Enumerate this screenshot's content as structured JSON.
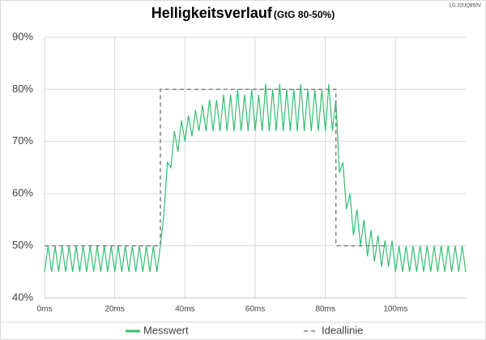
{
  "chart_data": {
    "type": "line",
    "title": "Helligkeitsverlauf",
    "subtitle": "(GtG 80-50%)",
    "annotation": "LG 32UQ850V",
    "xlim": [
      0,
      120
    ],
    "xticks": [
      {
        "value": 0,
        "label": "0ms"
      },
      {
        "value": 20,
        "label": "20ms"
      },
      {
        "value": 40,
        "label": "40ms"
      },
      {
        "value": 60,
        "label": "60ms"
      },
      {
        "value": 80,
        "label": "80ms"
      },
      {
        "value": 100,
        "label": "100ms"
      }
    ],
    "ylim": [
      40,
      90
    ],
    "yticks": [
      {
        "value": 40,
        "label": "40%"
      },
      {
        "value": 50,
        "label": "50%"
      },
      {
        "value": 60,
        "label": "60%"
      },
      {
        "value": 70,
        "label": "70%"
      },
      {
        "value": 80,
        "label": "80%"
      },
      {
        "value": 90,
        "label": "90%"
      }
    ],
    "grid": true,
    "legend": "bottom",
    "series": [
      {
        "name": "Messwert",
        "color": "#33bf72",
        "dash": false,
        "x": [
          0,
          1,
          2,
          3,
          4,
          5,
          6,
          7,
          8,
          9,
          10,
          11,
          12,
          13,
          14,
          15,
          16,
          17,
          18,
          19,
          20,
          21,
          22,
          23,
          24,
          25,
          26,
          27,
          28,
          29,
          30,
          31,
          32,
          33,
          34,
          35,
          36,
          37,
          38,
          39,
          40,
          41,
          42,
          43,
          44,
          45,
          46,
          47,
          48,
          49,
          50,
          51,
          52,
          53,
          54,
          55,
          56,
          57,
          58,
          59,
          60,
          61,
          62,
          63,
          64,
          65,
          66,
          67,
          68,
          69,
          70,
          71,
          72,
          73,
          74,
          75,
          76,
          77,
          78,
          79,
          80,
          81,
          82,
          83,
          84,
          85,
          86,
          87,
          88,
          89,
          90,
          91,
          92,
          93,
          94,
          95,
          96,
          97,
          98,
          99,
          100,
          101,
          102,
          103,
          104,
          105,
          106,
          107,
          108,
          109,
          110,
          111,
          112,
          113,
          114,
          115,
          116,
          117,
          118,
          119,
          120
        ],
        "values": [
          45,
          50,
          45,
          50,
          45,
          50,
          45,
          50,
          45,
          50,
          45,
          50,
          45,
          50,
          45,
          50,
          45,
          50,
          45,
          50,
          45,
          50,
          45,
          50,
          45,
          50,
          45,
          50,
          45,
          50,
          45,
          50,
          45,
          50,
          56,
          66,
          65,
          72,
          68,
          74,
          70,
          75,
          71,
          76,
          72,
          77,
          72,
          78,
          72,
          78,
          72,
          79,
          72,
          79,
          72,
          80,
          72,
          79,
          72,
          80,
          72,
          79,
          72,
          81,
          72,
          80,
          72,
          81,
          72,
          80,
          72,
          80,
          72,
          81,
          72,
          80,
          72,
          80,
          72,
          80,
          72,
          81,
          72,
          78,
          64,
          66,
          57,
          60,
          52,
          57,
          50,
          55,
          48,
          53,
          47,
          52,
          46,
          51,
          46,
          51,
          45,
          50,
          45,
          50,
          45,
          50,
          45,
          50,
          45,
          50,
          45,
          50,
          45,
          50,
          45,
          50,
          45,
          50,
          45,
          50,
          45
        ]
      },
      {
        "name": "Ideallinie",
        "color": "#808080",
        "dash": true,
        "x": [
          0,
          33,
          33,
          83,
          83,
          98
        ],
        "values": [
          50,
          50,
          80,
          80,
          50,
          50
        ]
      }
    ]
  }
}
